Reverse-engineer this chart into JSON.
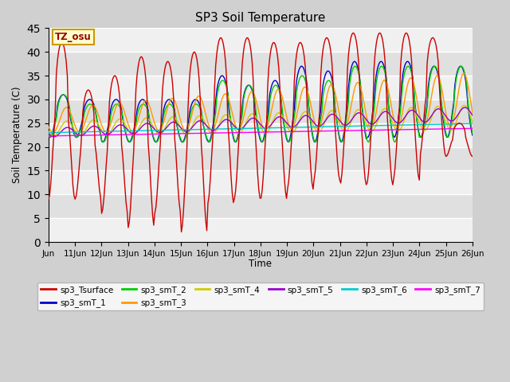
{
  "title": "SP3 Soil Temperature",
  "xlabel": "Time",
  "ylabel": "Soil Temperature (C)",
  "ylim": [
    0,
    45
  ],
  "yticks": [
    0,
    5,
    10,
    15,
    20,
    25,
    30,
    35,
    40,
    45
  ],
  "colors": {
    "sp3_Tsurface": "#cc0000",
    "sp3_smT_1": "#0000cc",
    "sp3_smT_2": "#00cc00",
    "sp3_smT_3": "#ff9900",
    "sp3_smT_4": "#cccc00",
    "sp3_smT_5": "#9900cc",
    "sp3_smT_6": "#00cccc",
    "sp3_smT_7": "#ff00ff"
  },
  "bg_color": "#d0d0d0",
  "plot_bg_light": "#f0f0f0",
  "plot_bg_dark": "#e0e0e0",
  "tz_label": "TZ_osu",
  "tz_bg": "#ffffcc",
  "tz_border": "#cc9900",
  "figsize": [
    6.4,
    4.8
  ],
  "dpi": 100
}
